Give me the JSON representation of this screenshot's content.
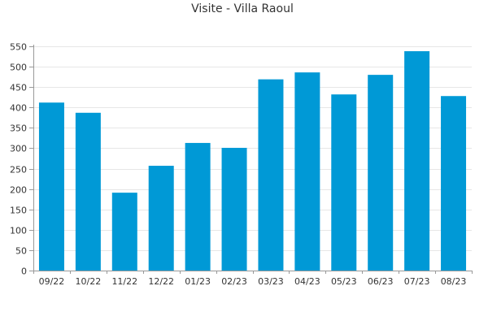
{
  "chart_data": {
    "type": "bar",
    "title": "Visite - Villa Raoul",
    "xlabel": "",
    "ylabel": "",
    "categories": [
      "09/22",
      "10/22",
      "11/22",
      "12/22",
      "01/23",
      "02/23",
      "03/23",
      "04/23",
      "05/23",
      "06/23",
      "07/23",
      "08/23"
    ],
    "values": [
      412,
      387,
      191,
      257,
      313,
      301,
      469,
      486,
      432,
      480,
      538,
      428
    ],
    "ylim": [
      0,
      550
    ],
    "yticks": [
      0,
      50,
      100,
      150,
      200,
      250,
      300,
      350,
      400,
      450,
      500,
      550
    ],
    "grid": true,
    "legend": "none",
    "colors": {
      "bar": "#0099d6",
      "grid": "#e6e6e6",
      "axis": "#999999",
      "text": "#333333"
    }
  }
}
